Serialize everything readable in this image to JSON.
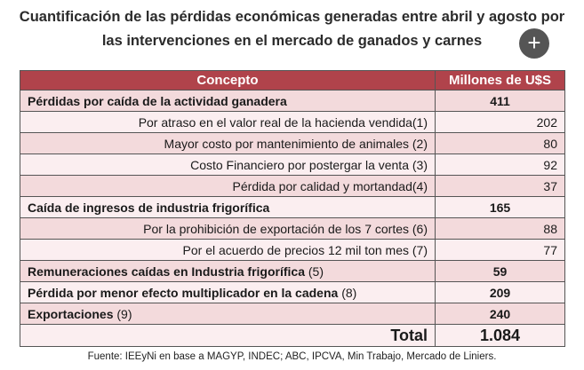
{
  "title": "Cuantificación de las pérdidas económicas generadas entre abril y agosto por las intervenciones en el mercado de ganados y carnes",
  "table": {
    "header": [
      "Concepto",
      "Millones de U$S"
    ],
    "rows": [
      {
        "kind": "section",
        "label": "Pérdidas por caída de la actividad ganadera",
        "value": 411
      },
      {
        "kind": "item",
        "label": "Por atraso en el valor real de la hacienda vendida(1)",
        "value": 202
      },
      {
        "kind": "item",
        "label": "Mayor costo por mantenimiento de animales (2)",
        "value": 80
      },
      {
        "kind": "item",
        "label": "Costo Financiero por postergar la venta (3)",
        "value": 92
      },
      {
        "kind": "item",
        "label": "Pérdida por calidad y mortandad(4)",
        "value": 37
      },
      {
        "kind": "section",
        "label": "Caída de ingresos de industria frigorífica",
        "value": 165
      },
      {
        "kind": "item",
        "label": "Por la prohibición de exportación de los 7 cortes (6)",
        "value": 88
      },
      {
        "kind": "item",
        "label": "Por el acuerdo de precios  12 mil ton mes (7)",
        "value": 77
      },
      {
        "kind": "section",
        "label": "Remuneraciones caídas en Industria frigorífica",
        "note": "(5)",
        "value": 59
      },
      {
        "kind": "section",
        "label": "Pérdida por menor efecto multiplicador en la cadena",
        "note": "(8)",
        "value": 209
      },
      {
        "kind": "section",
        "label": "Exportaciones",
        "note": "(9)",
        "value": 240
      }
    ],
    "total": {
      "label": "Total",
      "value": "1.084"
    }
  },
  "footer": "Fuente: IEEyNi en base a MAGYP, INDEC; ABC, IPCVA, Min Trabajo, Mercado de Liniers."
}
